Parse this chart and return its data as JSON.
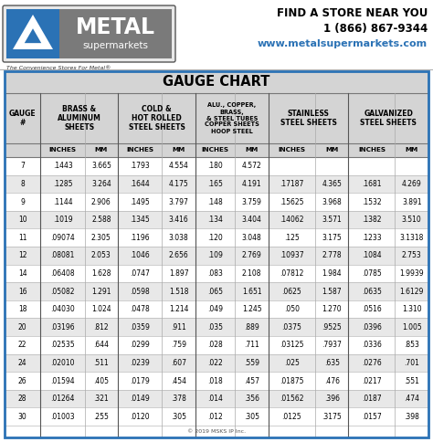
{
  "title": "GAUGE CHART",
  "rows": [
    {
      "gauge": "7",
      "b_in": ".1443",
      "b_mm": "3.665",
      "c_in": ".1793",
      "c_mm": "4.554",
      "a_in": ".180",
      "a_mm": "4.572",
      "s_in": "",
      "s_mm": "",
      "g_in": "",
      "g_mm": ""
    },
    {
      "gauge": "8",
      "b_in": ".1285",
      "b_mm": "3.264",
      "c_in": ".1644",
      "c_mm": "4.175",
      "a_in": ".165",
      "a_mm": "4.191",
      "s_in": ".17187",
      "s_mm": "4.365",
      "g_in": ".1681",
      "g_mm": "4.269"
    },
    {
      "gauge": "9",
      "b_in": ".1144",
      "b_mm": "2.906",
      "c_in": ".1495",
      "c_mm": "3.797",
      "a_in": ".148",
      "a_mm": "3.759",
      "s_in": ".15625",
      "s_mm": "3.968",
      "g_in": ".1532",
      "g_mm": "3.891"
    },
    {
      "gauge": "10",
      "b_in": ".1019",
      "b_mm": "2.588",
      "c_in": ".1345",
      "c_mm": "3.416",
      "a_in": ".134",
      "a_mm": "3.404",
      "s_in": ".14062",
      "s_mm": "3.571",
      "g_in": ".1382",
      "g_mm": "3.510"
    },
    {
      "gauge": "11",
      "b_in": ".09074",
      "b_mm": "2.305",
      "c_in": ".1196",
      "c_mm": "3.038",
      "a_in": ".120",
      "a_mm": "3.048",
      "s_in": ".125",
      "s_mm": "3.175",
      "g_in": ".1233",
      "g_mm": "3.1318"
    },
    {
      "gauge": "12",
      "b_in": ".08081",
      "b_mm": "2.053",
      "c_in": ".1046",
      "c_mm": "2.656",
      "a_in": ".109",
      "a_mm": "2.769",
      "s_in": ".10937",
      "s_mm": "2.778",
      "g_in": ".1084",
      "g_mm": "2.753"
    },
    {
      "gauge": "14",
      "b_in": ".06408",
      "b_mm": "1.628",
      "c_in": ".0747",
      "c_mm": "1.897",
      "a_in": ".083",
      "a_mm": "2.108",
      "s_in": ".07812",
      "s_mm": "1.984",
      "g_in": ".0785",
      "g_mm": "1.9939"
    },
    {
      "gauge": "16",
      "b_in": ".05082",
      "b_mm": "1.291",
      "c_in": ".0598",
      "c_mm": "1.518",
      "a_in": ".065",
      "a_mm": "1.651",
      "s_in": ".0625",
      "s_mm": "1.587",
      "g_in": ".0635",
      "g_mm": "1.6129"
    },
    {
      "gauge": "18",
      "b_in": ".04030",
      "b_mm": "1.024",
      "c_in": ".0478",
      "c_mm": "1.214",
      "a_in": ".049",
      "a_mm": "1.245",
      "s_in": ".050",
      "s_mm": "1.270",
      "g_in": ".0516",
      "g_mm": "1.310"
    },
    {
      "gauge": "20",
      "b_in": ".03196",
      "b_mm": ".812",
      "c_in": ".0359",
      "c_mm": ".911",
      "a_in": ".035",
      "a_mm": ".889",
      "s_in": ".0375",
      "s_mm": ".9525",
      "g_in": ".0396",
      "g_mm": "1.005"
    },
    {
      "gauge": "22",
      "b_in": ".02535",
      "b_mm": ".644",
      "c_in": ".0299",
      "c_mm": ".759",
      "a_in": ".028",
      "a_mm": ".711",
      "s_in": ".03125",
      "s_mm": ".7937",
      "g_in": ".0336",
      "g_mm": ".853"
    },
    {
      "gauge": "24",
      "b_in": ".02010",
      "b_mm": ".511",
      "c_in": ".0239",
      "c_mm": ".607",
      "a_in": ".022",
      "a_mm": ".559",
      "s_in": ".025",
      "s_mm": ".635",
      "g_in": ".0276",
      "g_mm": ".701"
    },
    {
      "gauge": "26",
      "b_in": ".01594",
      "b_mm": ".405",
      "c_in": ".0179",
      "c_mm": ".454",
      "a_in": ".018",
      "a_mm": ".457",
      "s_in": ".01875",
      "s_mm": ".476",
      "g_in": ".0217",
      "g_mm": ".551"
    },
    {
      "gauge": "28",
      "b_in": ".01264",
      "b_mm": ".321",
      "c_in": ".0149",
      "c_mm": ".378",
      "a_in": ".014",
      "a_mm": ".356",
      "s_in": ".01562",
      "s_mm": ".396",
      "g_in": ".0187",
      "g_mm": ".474"
    },
    {
      "gauge": "30",
      "b_in": ".01003",
      "b_mm": ".255",
      "c_in": ".0120",
      "c_mm": ".305",
      "a_in": ".012",
      "a_mm": ".305",
      "s_in": ".0125",
      "s_mm": ".3175",
      "g_in": ".0157",
      "g_mm": ".398"
    }
  ],
  "logo_tagline": "The Convenience Stores For Metal®",
  "find_store": "FIND A STORE NEAR YOU",
  "phone": "1 (866) 867-9344",
  "website": "www.metalsupermarkets.com",
  "copyright": "© 2019 MSKS IP Inc.",
  "bg_color": "#ffffff",
  "header_bg": "#d4d4d4",
  "title_bg": "#d4d4d4",
  "blue_color": "#2b72b5",
  "logo_gray": "#8c8c8c",
  "row_alt_color": "#e8e8e8",
  "row_color": "#ffffff",
  "border_color": "#2b72b5",
  "line_color": "#aaaaaa",
  "header_font_size": 5.5,
  "subheader_font_size": 5.2,
  "data_font_size": 5.5,
  "title_font_size": 10.5
}
